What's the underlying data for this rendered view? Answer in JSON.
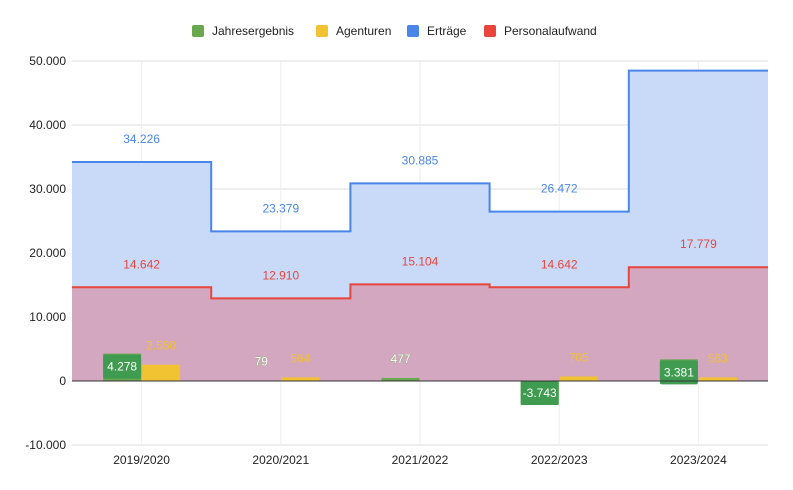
{
  "chart_data": {
    "type": "area",
    "categories": [
      "2019/2020",
      "2020/2021",
      "2021/2022",
      "2022/2023",
      "2023/2024"
    ],
    "ylim": [
      -10000,
      50000
    ],
    "yticks": [
      -10000,
      0,
      10000,
      20000,
      30000,
      40000,
      50000
    ],
    "ytick_labels": [
      "-10.000",
      "0",
      "10.000",
      "20.000",
      "30.000",
      "40.000",
      "50.000"
    ],
    "grid": true,
    "legend_position": "top",
    "series": [
      {
        "name": "Jahresergebnis",
        "kind": "bar",
        "color": "#6aa84f",
        "label_bg": "#3e9b4f",
        "values": [
          4278,
          79,
          477,
          -3743,
          3381
        ],
        "labels": [
          "4.278",
          "79",
          "477",
          "-3.743",
          "3.381"
        ]
      },
      {
        "name": "Agenturen",
        "kind": "bar",
        "color": "#f1c232",
        "values": [
          2550,
          564,
          null,
          705,
          563
        ],
        "labels": [
          "2.550",
          "564",
          "",
          "705",
          "563"
        ]
      },
      {
        "name": "Erträge",
        "kind": "stepped-area",
        "color": "#4a86e8",
        "fill": "#c9daf8",
        "values": [
          34226,
          23379,
          30885,
          26472,
          48500
        ],
        "labels": [
          "34.226",
          "23.379",
          "30.885",
          "26.472",
          ""
        ]
      },
      {
        "name": "Personalaufwand",
        "kind": "stepped-area",
        "color": "#e8453c",
        "fill": "#d3a7bf",
        "values": [
          14642,
          12910,
          15104,
          14642,
          17779
        ],
        "labels": [
          "14.642",
          "12.910",
          "15.104",
          "14.642",
          "17.779"
        ]
      }
    ]
  }
}
